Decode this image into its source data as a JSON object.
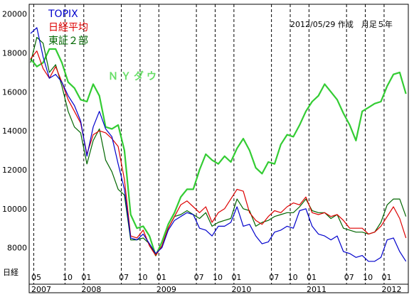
{
  "chart_data": {
    "type": "line",
    "note": "2012/05/29 作成　月足５年",
    "series_label": "ＮＹダウ",
    "yaxis_label": "日経",
    "ylim": [
      7000,
      20500
    ],
    "yticks": [
      8000,
      10000,
      12000,
      14000,
      16000,
      18000,
      20000
    ],
    "x_month_labels": [
      {
        "i": 0,
        "label": "05"
      },
      {
        "i": 5,
        "label": "10"
      },
      {
        "i": 8,
        "label": "01"
      },
      {
        "i": 14,
        "label": "07"
      },
      {
        "i": 17,
        "label": "10"
      },
      {
        "i": 20,
        "label": "01"
      },
      {
        "i": 26,
        "label": "07"
      },
      {
        "i": 29,
        "label": "10"
      },
      {
        "i": 32,
        "label": "01"
      },
      {
        "i": 38,
        "label": "07"
      },
      {
        "i": 41,
        "label": "10"
      },
      {
        "i": 44,
        "label": "01"
      },
      {
        "i": 50,
        "label": "07"
      },
      {
        "i": 53,
        "label": "10"
      },
      {
        "i": 56,
        "label": "01"
      }
    ],
    "x_year_labels": [
      {
        "i": 0,
        "label": "2007"
      },
      {
        "i": 8,
        "label": "2008"
      },
      {
        "i": 20,
        "label": "2009"
      },
      {
        "i": 32,
        "label": "2010"
      },
      {
        "i": 44,
        "label": "2011"
      },
      {
        "i": 56,
        "label": "2012"
      }
    ],
    "series": [
      {
        "name": "TOPIX",
        "color": "#0000cc",
        "values": [
          19000,
          19300,
          17800,
          16700,
          16900,
          16500,
          15800,
          15300,
          14500,
          12700,
          14200,
          15000,
          14100,
          13700,
          12300,
          11000,
          8500,
          8400,
          8700,
          8200,
          7700,
          8000,
          8900,
          9400,
          9600,
          9800,
          9700,
          9000,
          8900,
          8600,
          9100,
          9100,
          9300,
          10100,
          9100,
          9200,
          8600,
          8200,
          8300,
          8800,
          8900,
          9100,
          9000,
          9900,
          10000,
          9100,
          8700,
          8600,
          8400,
          8600,
          7800,
          7700,
          7500,
          7600,
          7300,
          7300,
          7500,
          8400,
          8500,
          7800,
          7300
        ]
      },
      {
        "name": "日経平均",
        "color": "#dd0000",
        "values": [
          17700,
          18100,
          17200,
          16700,
          17300,
          16500,
          15600,
          15000,
          14400,
          12800,
          13800,
          14000,
          13900,
          13600,
          13200,
          11500,
          8600,
          8500,
          8900,
          8100,
          7600,
          8100,
          9000,
          9600,
          10200,
          10400,
          10100,
          9800,
          10100,
          9300,
          9800,
          10000,
          10500,
          11000,
          10900,
          9800,
          9400,
          9200,
          9600,
          9900,
          9800,
          10100,
          10300,
          10200,
          10600,
          9800,
          9700,
          9800,
          9600,
          9700,
          9400,
          9000,
          9000,
          9000,
          8700,
          8800,
          9100,
          9600,
          10100,
          9500,
          8500
        ]
      },
      {
        "name": "東証２部",
        "color": "#006600",
        "values": [
          17500,
          18800,
          18500,
          17000,
          17400,
          16300,
          15000,
          14200,
          13900,
          12300,
          13500,
          14100,
          12500,
          11900,
          11000,
          10700,
          8400,
          8400,
          8500,
          8200,
          7600,
          8100,
          9000,
          9600,
          9700,
          9900,
          9700,
          9500,
          9800,
          9100,
          9300,
          9400,
          9500,
          10500,
          10000,
          9900,
          9100,
          9300,
          9400,
          9600,
          9700,
          9800,
          9800,
          10100,
          10500,
          9900,
          9800,
          9800,
          9500,
          9700,
          9000,
          8900,
          8800,
          8800,
          8700,
          8800,
          9300,
          10200,
          10500,
          10500,
          9600
        ]
      },
      {
        "name": "ＮＹダウ",
        "color": "#33cc33",
        "values": [
          17700,
          17300,
          17500,
          18200,
          18200,
          17500,
          16500,
          16200,
          15600,
          15500,
          16400,
          15800,
          14200,
          14100,
          14300,
          13000,
          9700,
          9000,
          9100,
          8600,
          7600,
          8300,
          9200,
          9800,
          10600,
          11000,
          11000,
          12000,
          12800,
          12500,
          12300,
          12700,
          12400,
          13100,
          13600,
          13000,
          12100,
          11800,
          12400,
          12300,
          13300,
          13800,
          13700,
          14300,
          15000,
          15500,
          15800,
          16400,
          16000,
          15600,
          14900,
          14300,
          13500,
          15000,
          15200,
          15400,
          15500,
          16300,
          16900,
          17000,
          15900
        ]
      }
    ]
  }
}
